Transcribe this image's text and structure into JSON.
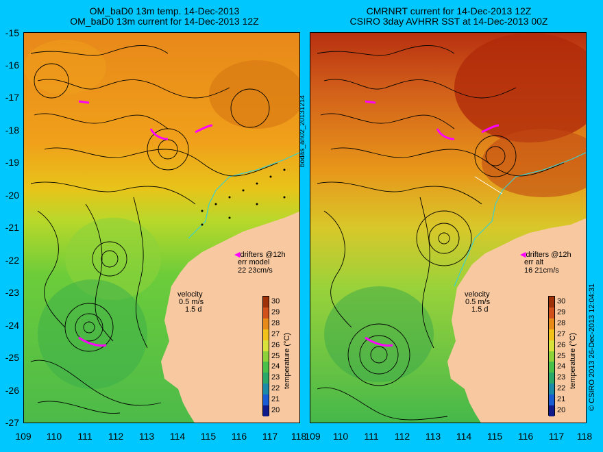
{
  "left_panel": {
    "title_line1": "OM_baD0 13m temp. 14-Dec-2013",
    "title_line2": "OM_baD0 13m current for 14-Dec-2013 12Z",
    "drifters_label": "drifters @12h",
    "err_label": "err model",
    "err_value": "22 23cm/s",
    "velocity_label": "velocity",
    "velocity_scale": "0.5 m/s",
    "velocity_time": "1.5 d"
  },
  "right_panel": {
    "title_line1": "CMRNRT current for 14-Dec-2013 12Z",
    "title_line2": "CSIRO 3day AVHRR SST at 14-Dec-2013 00Z",
    "drifters_label": "drifters @12h",
    "err_label": "err alt",
    "err_value": "16 21cm/s",
    "velocity_label": "velocity",
    "velocity_scale": "0.5 m/s",
    "velocity_time": "1.5 d"
  },
  "run_label": "bodas_an02_20131214",
  "credit_label": "© CSIRO 2013  26-Dec-2013 12:04:31",
  "colorbar": {
    "title": "temperature (°C)",
    "ticks": [
      "30",
      "29",
      "28",
      "27",
      "26",
      "25",
      "24",
      "23",
      "22",
      "21",
      "20"
    ],
    "colors": [
      "#a0320a",
      "#d2501a",
      "#e88a1a",
      "#f2c21a",
      "#d8e23a",
      "#8ed23a",
      "#48c04a",
      "#2aa86a",
      "#1a8aa8",
      "#1a5ad2",
      "#101a8a"
    ]
  },
  "axes": {
    "lat_ticks": [
      "-15",
      "-16",
      "-17",
      "-18",
      "-19",
      "-20",
      "-21",
      "-22",
      "-23",
      "-24",
      "-25",
      "-26",
      "-27"
    ],
    "lon_ticks": [
      "109",
      "110",
      "111",
      "112",
      "113",
      "114",
      "115",
      "116",
      "117",
      "118"
    ]
  },
  "colors": {
    "frame_background": "#00c8ff",
    "land": "#f8c8a0",
    "drifter_track": "#ff00ff",
    "coastline_line": "#3ad0d0"
  }
}
